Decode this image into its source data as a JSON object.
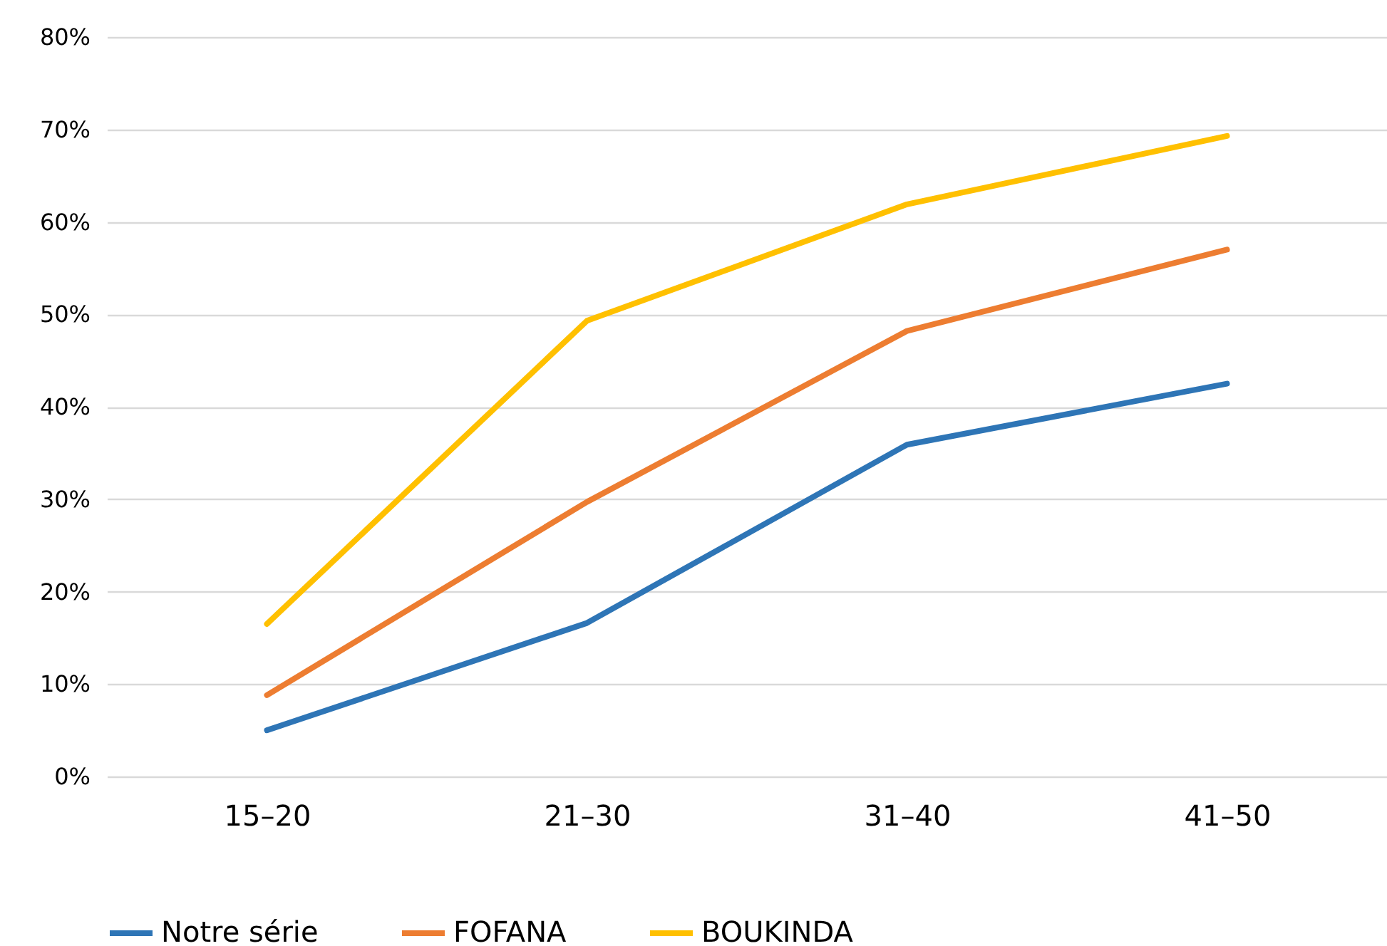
{
  "chart_data": {
    "type": "line",
    "categories": [
      "15–20",
      "21–30",
      "31–40",
      "41–50"
    ],
    "series": [
      {
        "name": "Notre série",
        "color": "#2e75b6",
        "values": [
          5,
          16.6,
          35.9,
          42.5
        ]
      },
      {
        "name": "FOFANA",
        "color": "#ed7d31",
        "values": [
          8.8,
          29.7,
          48.2,
          57
        ]
      },
      {
        "name": "BOUKINDA",
        "color": "#ffc000",
        "values": [
          16.5,
          49.3,
          61.9,
          69.3
        ]
      }
    ],
    "ylim": [
      0,
      80
    ],
    "yticks": [
      {
        "value": 0,
        "label": "0%"
      },
      {
        "value": 10,
        "label": "10%"
      },
      {
        "value": 20,
        "label": "20%"
      },
      {
        "value": 30,
        "label": "30%"
      },
      {
        "value": 40,
        "label": "40%"
      },
      {
        "value": 50,
        "label": "50%"
      },
      {
        "value": 60,
        "label": "60%"
      },
      {
        "value": 70,
        "label": "70%"
      },
      {
        "value": 80,
        "label": "80%"
      }
    ],
    "grid": "y",
    "legend": "bottom",
    "marker": "none",
    "line_style": "solid"
  }
}
